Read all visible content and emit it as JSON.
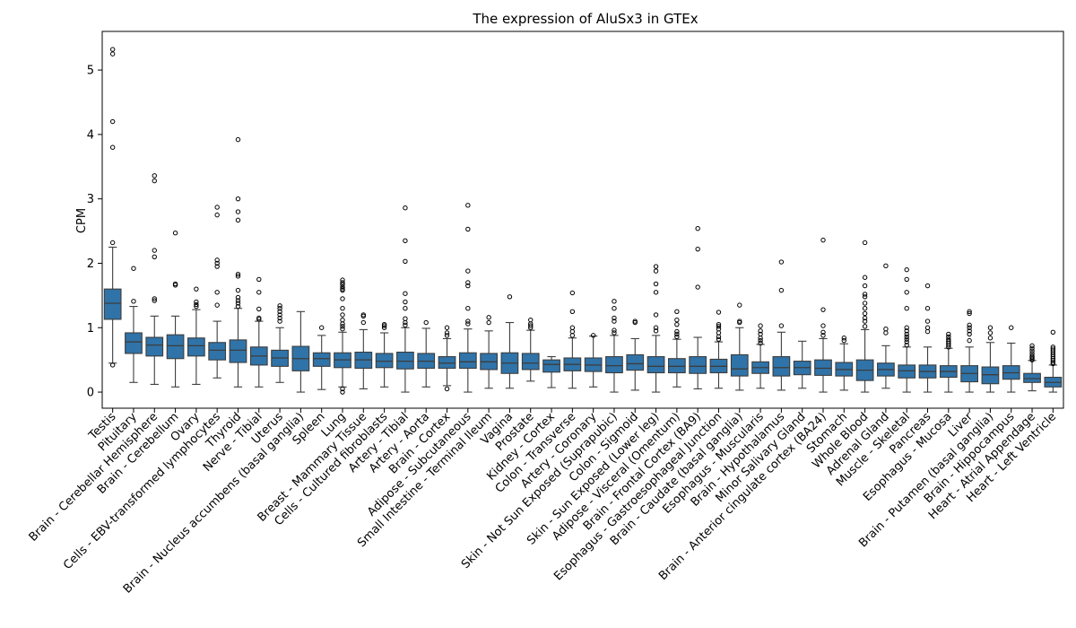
{
  "chart_data": {
    "type": "box",
    "title": "The expression of AluSx3 in GTEx",
    "xlabel": "",
    "ylabel": "CPM",
    "ylim": [
      -0.25,
      5.6
    ],
    "yticks": [
      0,
      1,
      2,
      3,
      4,
      5
    ],
    "grid": false,
    "legend": "none",
    "box_color": "#2f73a8",
    "categories": [
      "Testis",
      "Pituitary",
      "Brain - Cerebellar Hemisphere",
      "Brain - Cerebellum",
      "Ovary",
      "Cells - EBV-transformed lymphocytes",
      "Thyroid",
      "Nerve - Tibial",
      "Uterus",
      "Brain - Nucleus accumbens (basal ganglia)",
      "Spleen",
      "Lung",
      "Breast - Mammary Tissue",
      "Cells - Cultured fibroblasts",
      "Artery - Tibial",
      "Artery - Aorta",
      "Brain - Cortex",
      "Adipose - Subcutaneous",
      "Small Intestine - Terminal Ileum",
      "Vagina",
      "Prostate",
      "Kidney - Cortex",
      "Colon - Transverse",
      "Artery - Coronary",
      "Skin - Not Sun Exposed (Suprapubic)",
      "Colon - Sigmoid",
      "Skin - Sun Exposed (Lower leg)",
      "Adipose - Visceral (Omentum)",
      "Brain - Frontal Cortex (BA9)",
      "Esophagus - Gastroesophageal Junction",
      "Brain - Caudate (basal ganglia)",
      "Esophagus - Muscularis",
      "Brain - Hypothalamus",
      "Minor Salivary Gland",
      "Brain - Anterior cingulate cortex (BA24)",
      "Stomach",
      "Whole Blood",
      "Adrenal Gland",
      "Muscle - Skeletal",
      "Pancreas",
      "Esophagus - Mucosa",
      "Liver",
      "Brain - Putamen (basal ganglia)",
      "Brain - Hippocampus",
      "Heart - Atrial Appendage",
      "Heart - Left Ventricle"
    ],
    "boxes": [
      {
        "whislo": 0.45,
        "q1": 1.13,
        "med": 1.38,
        "q3": 1.6,
        "whishi": 2.25,
        "fliers": [
          0.42,
          2.32,
          3.8,
          4.2,
          5.25,
          5.32
        ]
      },
      {
        "whislo": 0.15,
        "q1": 0.6,
        "med": 0.78,
        "q3": 0.92,
        "whishi": 1.33,
        "fliers": [
          1.41,
          1.92
        ]
      },
      {
        "whislo": 0.12,
        "q1": 0.56,
        "med": 0.73,
        "q3": 0.85,
        "whishi": 1.18,
        "fliers": [
          1.42,
          1.45,
          2.1,
          2.2,
          3.28,
          3.36
        ]
      },
      {
        "whislo": 0.08,
        "q1": 0.52,
        "med": 0.72,
        "q3": 0.89,
        "whishi": 1.18,
        "fliers": [
          1.66,
          1.68,
          2.47
        ]
      },
      {
        "whislo": 0.12,
        "q1": 0.56,
        "med": 0.72,
        "q3": 0.84,
        "whishi": 1.28,
        "fliers": [
          1.33,
          1.36,
          1.4,
          1.6
        ]
      },
      {
        "whislo": 0.22,
        "q1": 0.5,
        "med": 0.65,
        "q3": 0.77,
        "whishi": 1.1,
        "fliers": [
          1.35,
          1.55,
          1.95,
          2.0,
          2.05,
          2.75,
          2.87
        ]
      },
      {
        "whislo": 0.08,
        "q1": 0.46,
        "med": 0.65,
        "q3": 0.81,
        "whishi": 1.3,
        "fliers": [
          1.33,
          1.38,
          1.42,
          1.47,
          1.58,
          1.8,
          1.83,
          2.67,
          2.8,
          3.0,
          3.92
        ]
      },
      {
        "whislo": 0.08,
        "q1": 0.42,
        "med": 0.56,
        "q3": 0.7,
        "whishi": 1.1,
        "fliers": [
          1.13,
          1.15,
          1.29,
          1.55,
          1.75
        ]
      },
      {
        "whislo": 0.15,
        "q1": 0.4,
        "med": 0.53,
        "q3": 0.65,
        "whishi": 1.0,
        "fliers": [
          1.1,
          1.15,
          1.2,
          1.25,
          1.3,
          1.34
        ]
      },
      {
        "whislo": 0.0,
        "q1": 0.33,
        "med": 0.52,
        "q3": 0.71,
        "whishi": 1.25,
        "fliers": []
      },
      {
        "whislo": 0.04,
        "q1": 0.4,
        "med": 0.52,
        "q3": 0.61,
        "whishi": 0.88,
        "fliers": [
          1.0
        ]
      },
      {
        "whislo": 0.08,
        "q1": 0.38,
        "med": 0.5,
        "q3": 0.61,
        "whishi": 0.93,
        "fliers": [
          0.0,
          0.05,
          0.98,
          1.02,
          1.06,
          1.12,
          1.2,
          1.3,
          1.45,
          1.58,
          1.6,
          1.63,
          1.67,
          1.7,
          1.74
        ]
      },
      {
        "whislo": 0.05,
        "q1": 0.37,
        "med": 0.5,
        "q3": 0.62,
        "whishi": 0.97,
        "fliers": [
          1.08,
          1.18,
          1.2
        ]
      },
      {
        "whislo": 0.08,
        "q1": 0.38,
        "med": 0.48,
        "q3": 0.6,
        "whishi": 0.92,
        "fliers": [
          1.0,
          1.03,
          1.05
        ]
      },
      {
        "whislo": 0.0,
        "q1": 0.36,
        "med": 0.48,
        "q3": 0.62,
        "whishi": 1.0,
        "fliers": [
          1.04,
          1.08,
          1.14,
          1.3,
          1.4,
          1.53,
          2.03,
          2.35,
          2.86
        ]
      },
      {
        "whislo": 0.08,
        "q1": 0.37,
        "med": 0.48,
        "q3": 0.6,
        "whishi": 0.99,
        "fliers": [
          1.08
        ]
      },
      {
        "whislo": 0.1,
        "q1": 0.37,
        "med": 0.45,
        "q3": 0.55,
        "whishi": 0.83,
        "fliers": [
          0.05,
          0.88,
          0.92,
          1.0
        ]
      },
      {
        "whislo": 0.0,
        "q1": 0.37,
        "med": 0.47,
        "q3": 0.61,
        "whishi": 0.98,
        "fliers": [
          1.06,
          1.1,
          1.3,
          1.65,
          1.7,
          1.88,
          2.53,
          2.9
        ]
      },
      {
        "whislo": 0.06,
        "q1": 0.35,
        "med": 0.47,
        "q3": 0.6,
        "whishi": 0.95,
        "fliers": [
          1.08,
          1.16
        ]
      },
      {
        "whislo": 0.06,
        "q1": 0.29,
        "med": 0.45,
        "q3": 0.61,
        "whishi": 1.08,
        "fliers": [
          1.48
        ]
      },
      {
        "whislo": 0.17,
        "q1": 0.35,
        "med": 0.45,
        "q3": 0.6,
        "whishi": 0.96,
        "fliers": [
          1.0,
          1.03,
          1.06,
          1.12
        ]
      },
      {
        "whislo": 0.07,
        "q1": 0.31,
        "med": 0.43,
        "q3": 0.5,
        "whishi": 0.55,
        "fliers": []
      },
      {
        "whislo": 0.06,
        "q1": 0.33,
        "med": 0.43,
        "q3": 0.53,
        "whishi": 0.84,
        "fliers": [
          0.88,
          0.94,
          1.0,
          1.25,
          1.54
        ]
      },
      {
        "whislo": 0.08,
        "q1": 0.32,
        "med": 0.42,
        "q3": 0.53,
        "whishi": 0.87,
        "fliers": [
          0.88
        ]
      },
      {
        "whislo": 0.0,
        "q1": 0.3,
        "med": 0.41,
        "q3": 0.55,
        "whishi": 0.88,
        "fliers": [
          0.92,
          0.96,
          1.1,
          1.15,
          1.3,
          1.41
        ]
      },
      {
        "whislo": 0.03,
        "q1": 0.34,
        "med": 0.44,
        "q3": 0.58,
        "whishi": 0.83,
        "fliers": [
          1.08,
          1.1
        ]
      },
      {
        "whislo": 0.0,
        "q1": 0.3,
        "med": 0.4,
        "q3": 0.55,
        "whishi": 0.88,
        "fliers": [
          0.95,
          1.0,
          1.2,
          1.55,
          1.68,
          1.88,
          1.95
        ]
      },
      {
        "whislo": 0.08,
        "q1": 0.3,
        "med": 0.4,
        "q3": 0.52,
        "whishi": 0.82,
        "fliers": [
          0.86,
          0.9,
          0.94,
          1.05,
          1.12,
          1.25
        ]
      },
      {
        "whislo": 0.05,
        "q1": 0.29,
        "med": 0.4,
        "q3": 0.55,
        "whishi": 0.85,
        "fliers": [
          1.63,
          2.22,
          2.54
        ]
      },
      {
        "whislo": 0.06,
        "q1": 0.3,
        "med": 0.4,
        "q3": 0.51,
        "whishi": 0.78,
        "fliers": [
          0.82,
          0.86,
          0.92,
          0.98,
          1.02,
          1.05,
          1.24
        ]
      },
      {
        "whislo": 0.03,
        "q1": 0.25,
        "med": 0.36,
        "q3": 0.58,
        "whishi": 1.0,
        "fliers": [
          1.08,
          1.1,
          1.35
        ]
      },
      {
        "whislo": 0.06,
        "q1": 0.29,
        "med": 0.38,
        "q3": 0.47,
        "whishi": 0.74,
        "fliers": [
          0.76,
          0.8,
          0.84,
          0.9,
          0.95,
          1.03
        ]
      },
      {
        "whislo": 0.03,
        "q1": 0.25,
        "med": 0.38,
        "q3": 0.55,
        "whishi": 0.93,
        "fliers": [
          1.03,
          1.58,
          2.02
        ]
      },
      {
        "whislo": 0.06,
        "q1": 0.27,
        "med": 0.38,
        "q3": 0.48,
        "whishi": 0.79,
        "fliers": []
      },
      {
        "whislo": 0.0,
        "q1": 0.26,
        "med": 0.37,
        "q3": 0.5,
        "whishi": 0.83,
        "fliers": [
          0.88,
          0.93,
          1.03,
          1.28,
          2.36
        ]
      },
      {
        "whislo": 0.03,
        "q1": 0.25,
        "med": 0.35,
        "q3": 0.46,
        "whishi": 0.75,
        "fliers": [
          0.8,
          0.84
        ]
      },
      {
        "whislo": 0.0,
        "q1": 0.18,
        "med": 0.34,
        "q3": 0.5,
        "whishi": 0.97,
        "fliers": [
          1.02,
          1.1,
          1.15,
          1.22,
          1.3,
          1.38,
          1.48,
          1.52,
          1.65,
          1.78,
          2.32
        ]
      },
      {
        "whislo": 0.06,
        "q1": 0.25,
        "med": 0.35,
        "q3": 0.45,
        "whishi": 0.72,
        "fliers": [
          0.92,
          0.98,
          1.96
        ]
      },
      {
        "whislo": 0.0,
        "q1": 0.22,
        "med": 0.33,
        "q3": 0.42,
        "whishi": 0.7,
        "fliers": [
          0.73,
          0.78,
          0.82,
          0.86,
          0.9,
          0.95,
          1.0,
          1.3,
          1.55,
          1.75,
          1.9
        ]
      },
      {
        "whislo": 0.0,
        "q1": 0.22,
        "med": 0.32,
        "q3": 0.42,
        "whishi": 0.7,
        "fliers": [
          0.94,
          1.0,
          1.1,
          1.3,
          1.65
        ]
      },
      {
        "whislo": 0.0,
        "q1": 0.23,
        "med": 0.32,
        "q3": 0.41,
        "whishi": 0.68,
        "fliers": [
          0.7,
          0.73,
          0.76,
          0.79,
          0.82,
          0.86,
          0.9
        ]
      },
      {
        "whislo": 0.0,
        "q1": 0.16,
        "med": 0.29,
        "q3": 0.41,
        "whishi": 0.7,
        "fliers": [
          0.8,
          0.9,
          0.95,
          1.0,
          1.04,
          1.22,
          1.25
        ]
      },
      {
        "whislo": 0.0,
        "q1": 0.13,
        "med": 0.27,
        "q3": 0.39,
        "whishi": 0.77,
        "fliers": [
          0.84,
          0.92,
          1.0
        ]
      },
      {
        "whislo": 0.0,
        "q1": 0.2,
        "med": 0.3,
        "q3": 0.41,
        "whishi": 0.76,
        "fliers": [
          1.0
        ]
      },
      {
        "whislo": 0.02,
        "q1": 0.15,
        "med": 0.21,
        "q3": 0.29,
        "whishi": 0.49,
        "fliers": [
          0.5,
          0.52,
          0.54,
          0.56,
          0.6,
          0.64,
          0.68,
          0.72
        ]
      },
      {
        "whislo": 0.0,
        "q1": 0.08,
        "med": 0.15,
        "q3": 0.23,
        "whishi": 0.42,
        "fliers": [
          0.44,
          0.46,
          0.49,
          0.52,
          0.55,
          0.58,
          0.61,
          0.64,
          0.67,
          0.7,
          0.93
        ]
      }
    ]
  }
}
